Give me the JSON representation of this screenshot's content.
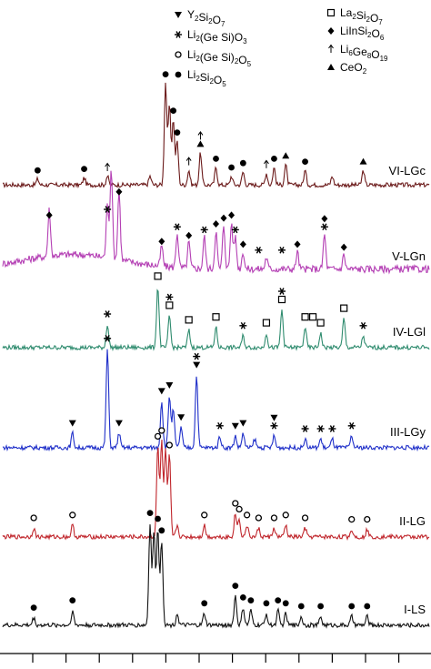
{
  "chart_data": {
    "type": "line",
    "title": "",
    "xlabel": "",
    "ylabel": "",
    "grid": false,
    "legend_placement": "top",
    "legend": {
      "left": [
        {
          "marker": "triangle-down",
          "label": "Y",
          "sub1": "2",
          "mid": "Si",
          "sub2": "2",
          "tail": "O",
          "sub3": "7"
        },
        {
          "marker": "asterisk",
          "label": "Li",
          "sub1": "2",
          "mid": "(Ge Si)O",
          "sub2": "3",
          "tail": "",
          "sub3": ""
        },
        {
          "marker": "open-circle",
          "label": "Li",
          "sub1": "2",
          "mid": "(Ge Si)",
          "sub2": "2",
          "tail": "O",
          "sub3": "5"
        },
        {
          "marker": "filled-circle",
          "label": "Li",
          "sub1": "2",
          "mid": "Si",
          "sub2": "2",
          "tail": "O",
          "sub3": "5"
        }
      ],
      "right": [
        {
          "marker": "open-square",
          "label": "La",
          "sub1": "2",
          "mid": "Si",
          "sub2": "2",
          "tail": "O",
          "sub3": "7"
        },
        {
          "marker": "filled-diamond",
          "label": "LiInSi",
          "sub1": "2",
          "mid": "O",
          "sub2": "6",
          "tail": "",
          "sub3": ""
        },
        {
          "marker": "arrow-up",
          "label": "Li",
          "sub1": "6",
          "mid": "Ge",
          "sub2": "8",
          "tail": "O",
          "sub3": "19"
        },
        {
          "marker": "filled-triangle",
          "label": "CeO",
          "sub1": "2",
          "mid": "",
          "sub2": "",
          "tail": "",
          "sub3": ""
        }
      ]
    },
    "series": [
      {
        "name": "VI-LGc",
        "color": "#6b1a1a",
        "peaks": [
          [
            19,
            4
          ],
          [
            31,
            5
          ],
          [
            37,
            6
          ],
          [
            48,
            6
          ],
          [
            52,
            70
          ],
          [
            53,
            55
          ],
          [
            54,
            45
          ],
          [
            55,
            30
          ],
          [
            58,
            10
          ],
          [
            61,
            22
          ],
          [
            65,
            12
          ],
          [
            69,
            6
          ],
          [
            72,
            9
          ],
          [
            78,
            8
          ],
          [
            80,
            12
          ],
          [
            83,
            14
          ],
          [
            88,
            10
          ],
          [
            95,
            6
          ],
          [
            103,
            10
          ]
        ],
        "markers": [
          [
            19,
            "filled-circle"
          ],
          [
            31,
            "filled-circle"
          ],
          [
            37,
            "arrow-up"
          ],
          [
            52,
            "filled-circle"
          ],
          [
            54,
            "filled-circle"
          ],
          [
            55,
            "filled-circle"
          ],
          [
            58,
            "arrow-up"
          ],
          [
            61,
            "filled-triangle"
          ],
          [
            61,
            "arrow-up"
          ],
          [
            65,
            "filled-circle"
          ],
          [
            69,
            "filled-circle"
          ],
          [
            72,
            "filled-circle"
          ],
          [
            78,
            "arrow-up"
          ],
          [
            80,
            "filled-circle"
          ],
          [
            83,
            "filled-triangle"
          ],
          [
            88,
            "filled-circle"
          ],
          [
            103,
            "filled-triangle"
          ]
        ]
      },
      {
        "name": "V-LGn",
        "color": "#b43fb4",
        "peaks": [
          [
            22,
            32
          ],
          [
            37,
            36
          ],
          [
            38,
            62
          ],
          [
            40,
            48
          ],
          [
            51,
            14
          ],
          [
            55,
            24
          ],
          [
            58,
            18
          ],
          [
            62,
            22
          ],
          [
            65,
            26
          ],
          [
            67,
            30
          ],
          [
            69,
            32
          ],
          [
            70,
            22
          ],
          [
            72,
            12
          ],
          [
            78,
            8
          ],
          [
            86,
            12
          ],
          [
            93,
            24
          ],
          [
            98,
            10
          ]
        ],
        "markers": [
          [
            22,
            "filled-diamond"
          ],
          [
            37,
            "asterisk"
          ],
          [
            40,
            "filled-diamond"
          ],
          [
            51,
            "filled-diamond"
          ],
          [
            55,
            "asterisk"
          ],
          [
            58,
            "filled-diamond"
          ],
          [
            62,
            "asterisk"
          ],
          [
            65,
            "filled-diamond"
          ],
          [
            67,
            "filled-diamond"
          ],
          [
            69,
            "filled-diamond"
          ],
          [
            70,
            "asterisk"
          ],
          [
            72,
            "filled-diamond"
          ],
          [
            76,
            "asterisk"
          ],
          [
            82,
            "asterisk"
          ],
          [
            86,
            "filled-diamond"
          ],
          [
            93,
            "asterisk"
          ],
          [
            93,
            "filled-diamond"
          ],
          [
            98,
            "filled-diamond"
          ]
        ]
      },
      {
        "name": "IV-LGl",
        "color": "#2e8b6e",
        "peaks": [
          [
            37,
            16
          ],
          [
            50,
            42
          ],
          [
            53,
            22
          ],
          [
            58,
            12
          ],
          [
            65,
            14
          ],
          [
            72,
            8
          ],
          [
            78,
            10
          ],
          [
            82,
            26
          ],
          [
            88,
            14
          ],
          [
            92,
            10
          ],
          [
            98,
            20
          ],
          [
            103,
            8
          ]
        ],
        "markers": [
          [
            37,
            "asterisk"
          ],
          [
            50,
            "open-square"
          ],
          [
            53,
            "open-square"
          ],
          [
            53,
            "asterisk"
          ],
          [
            58,
            "open-square"
          ],
          [
            65,
            "open-square"
          ],
          [
            72,
            "asterisk"
          ],
          [
            78,
            "open-square"
          ],
          [
            82,
            "open-square"
          ],
          [
            82,
            "asterisk"
          ],
          [
            88,
            "open-square"
          ],
          [
            90,
            "open-square"
          ],
          [
            92,
            "open-square"
          ],
          [
            98,
            "open-square"
          ],
          [
            103,
            "asterisk"
          ]
        ]
      },
      {
        "name": "III-LGy",
        "color": "#1f2fc9",
        "peaks": [
          [
            28,
            10
          ],
          [
            37,
            68
          ],
          [
            40,
            10
          ],
          [
            51,
            32
          ],
          [
            53,
            36
          ],
          [
            54,
            26
          ],
          [
            56,
            14
          ],
          [
            60,
            50
          ],
          [
            66,
            8
          ],
          [
            70,
            8
          ],
          [
            72,
            10
          ],
          [
            75,
            6
          ],
          [
            80,
            8
          ],
          [
            88,
            6
          ],
          [
            92,
            6
          ],
          [
            95,
            6
          ],
          [
            100,
            8
          ]
        ],
        "markers": [
          [
            28,
            "triangle-down"
          ],
          [
            37,
            "asterisk"
          ],
          [
            40,
            "triangle-down"
          ],
          [
            51,
            "triangle-down"
          ],
          [
            53,
            "triangle-down"
          ],
          [
            56,
            "triangle-down"
          ],
          [
            60,
            "triangle-down"
          ],
          [
            60,
            "asterisk"
          ],
          [
            66,
            "asterisk"
          ],
          [
            70,
            "triangle-down"
          ],
          [
            72,
            "triangle-down"
          ],
          [
            80,
            "asterisk"
          ],
          [
            80,
            "triangle-down"
          ],
          [
            88,
            "asterisk"
          ],
          [
            92,
            "asterisk"
          ],
          [
            95,
            "asterisk"
          ],
          [
            100,
            "asterisk"
          ]
        ]
      },
      {
        "name": "II-LG",
        "color": "#c0262c",
        "peaks": [
          [
            18,
            6
          ],
          [
            28,
            8
          ],
          [
            50,
            62
          ],
          [
            51,
            66
          ],
          [
            52,
            60
          ],
          [
            53,
            56
          ],
          [
            55,
            8
          ],
          [
            62,
            8
          ],
          [
            70,
            16
          ],
          [
            71,
            12
          ],
          [
            73,
            8
          ],
          [
            76,
            6
          ],
          [
            80,
            6
          ],
          [
            83,
            8
          ],
          [
            88,
            6
          ],
          [
            100,
            5
          ],
          [
            104,
            5
          ]
        ],
        "markers": [
          [
            18,
            "open-circle"
          ],
          [
            28,
            "open-circle"
          ],
          [
            50,
            "open-circle"
          ],
          [
            51,
            "open-circle"
          ],
          [
            53,
            "open-circle"
          ],
          [
            62,
            "open-circle"
          ],
          [
            70,
            "open-circle"
          ],
          [
            71,
            "open-circle"
          ],
          [
            73,
            "open-circle"
          ],
          [
            76,
            "open-circle"
          ],
          [
            80,
            "open-circle"
          ],
          [
            83,
            "open-circle"
          ],
          [
            88,
            "open-circle"
          ],
          [
            100,
            "open-circle"
          ],
          [
            104,
            "open-circle"
          ]
        ]
      },
      {
        "name": "I-LS",
        "color": "#111111",
        "peaks": [
          [
            18,
            5
          ],
          [
            28,
            10
          ],
          [
            48,
            70
          ],
          [
            49,
            64
          ],
          [
            50,
            66
          ],
          [
            51,
            58
          ],
          [
            55,
            8
          ],
          [
            62,
            8
          ],
          [
            70,
            20
          ],
          [
            72,
            12
          ],
          [
            74,
            10
          ],
          [
            78,
            8
          ],
          [
            81,
            10
          ],
          [
            83,
            8
          ],
          [
            87,
            6
          ],
          [
            92,
            6
          ],
          [
            100,
            6
          ],
          [
            104,
            6
          ]
        ],
        "markers": [
          [
            18,
            "filled-circle"
          ],
          [
            28,
            "filled-circle"
          ],
          [
            48,
            "filled-circle"
          ],
          [
            50,
            "filled-circle"
          ],
          [
            51,
            "filled-circle"
          ],
          [
            62,
            "filled-circle"
          ],
          [
            70,
            "filled-circle"
          ],
          [
            72,
            "filled-circle"
          ],
          [
            74,
            "filled-circle"
          ],
          [
            78,
            "filled-circle"
          ],
          [
            81,
            "filled-circle"
          ],
          [
            83,
            "filled-circle"
          ],
          [
            87,
            "filled-circle"
          ],
          [
            92,
            "filled-circle"
          ],
          [
            100,
            "filled-circle"
          ],
          [
            104,
            "filled-circle"
          ]
        ]
      }
    ],
    "xlim": [
      10,
      120
    ],
    "x_tick_count": 12
  }
}
